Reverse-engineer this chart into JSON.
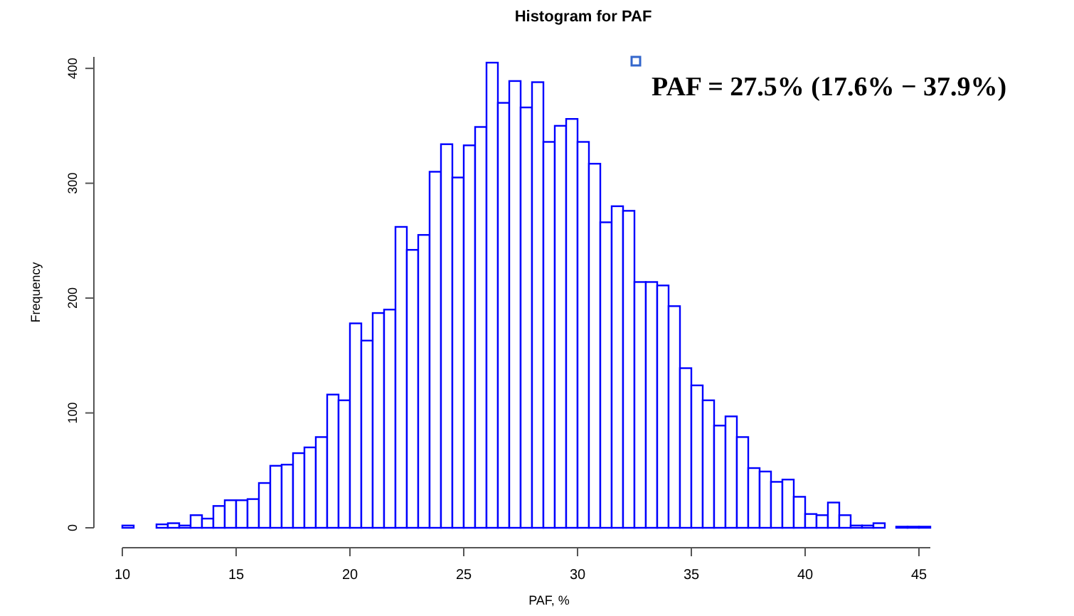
{
  "chart_data": {
    "type": "histogram",
    "title": "Histogram for PAF",
    "xlabel": "PAF, %",
    "ylabel": "Frequency",
    "color": "#0000ff",
    "bins": [
      10,
      10.5,
      11,
      11.5,
      12,
      12.5,
      13,
      13.5,
      14,
      14.5,
      15,
      15.5,
      16,
      16.5,
      17,
      17.5,
      18,
      18.5,
      19,
      19.5,
      20,
      20.5,
      21,
      21.5,
      22,
      22.5,
      23,
      23.5,
      24,
      24.5,
      25,
      25.5,
      26,
      26.5,
      27,
      27.5,
      28,
      28.5,
      29,
      29.5,
      30,
      30.5,
      31,
      31.5,
      32,
      32.5,
      33,
      33.5,
      34,
      34.5,
      35,
      35.5,
      36,
      36.5,
      37,
      37.5,
      38,
      38.5,
      39,
      39.5,
      40,
      40.5,
      41,
      41.5,
      42,
      42.5,
      43,
      43.5,
      44,
      44.5,
      45,
      45.5
    ],
    "values": [
      2,
      0,
      0,
      3,
      4,
      2,
      11,
      8,
      19,
      24,
      24,
      25,
      39,
      54,
      55,
      65,
      70,
      79,
      116,
      111,
      178,
      163,
      187,
      190,
      262,
      242,
      255,
      310,
      334,
      305,
      333,
      349,
      405,
      370,
      389,
      366,
      388,
      336,
      350,
      356,
      336,
      317,
      266,
      280,
      276,
      214,
      214,
      211,
      193,
      139,
      124,
      111,
      89,
      97,
      79,
      52,
      49,
      40,
      42,
      27,
      12,
      11,
      22,
      11,
      2,
      2,
      4,
      0,
      1,
      1,
      1
    ],
    "xlim": [
      10,
      45.5
    ],
    "ylim": [
      0,
      410
    ],
    "xticks": [
      10,
      15,
      20,
      25,
      30,
      35,
      40,
      45
    ],
    "yticks": [
      0,
      100,
      200,
      300,
      400
    ],
    "annotations": [
      "PAF = 27.5% (17.6% − 37.9%)"
    ]
  }
}
